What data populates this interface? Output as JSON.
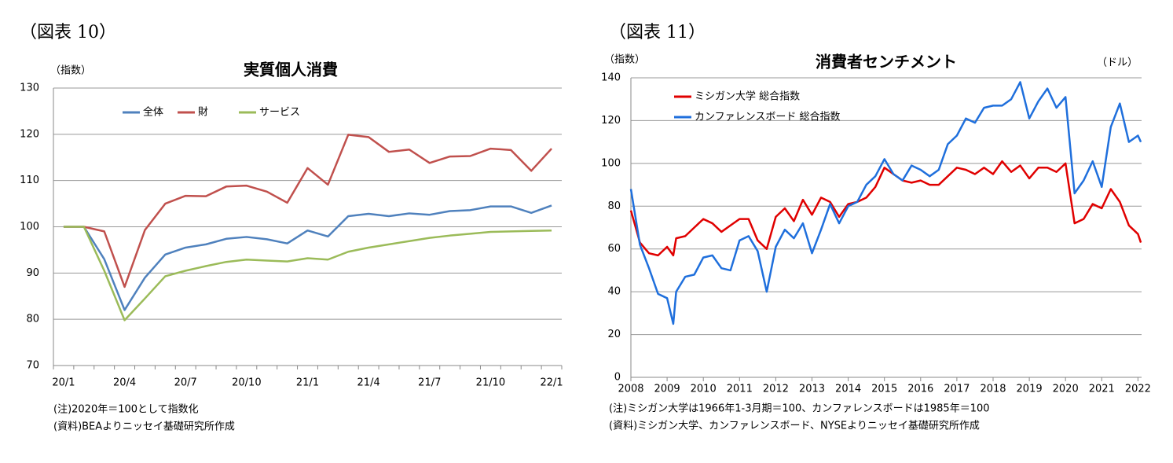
{
  "chart_data": [
    {
      "type": "line",
      "figure_label": "（図表 10）",
      "title": "実質個人消費",
      "ylabel": "（指数）",
      "categories": [
        "20/1",
        null,
        null,
        "20/4",
        null,
        null,
        "20/7",
        null,
        null,
        "20/10",
        null,
        null,
        "21/1",
        null,
        null,
        "21/4",
        null,
        null,
        "21/7",
        null,
        null,
        "21/10",
        null,
        null,
        "22/1"
      ],
      "series": [
        {
          "name": "全体",
          "color": "#4f81bd",
          "values": [
            100,
            100,
            93,
            82,
            89,
            94,
            95.5,
            96.2,
            97.4,
            97.8,
            97.3,
            96.4,
            99.2,
            97.9,
            102.3,
            102.8,
            102.3,
            102.9,
            102.6,
            103.4,
            103.6,
            104.4,
            104.4,
            103.0,
            104.6
          ]
        },
        {
          "name": "財",
          "color": "#c0504d",
          "values": [
            100,
            100,
            99,
            87,
            99.3,
            105,
            106.7,
            106.6,
            108.7,
            108.9,
            107.6,
            105.2,
            112.7,
            109.1,
            119.9,
            119.4,
            116.2,
            116.7,
            113.8,
            115.2,
            115.3,
            116.9,
            116.6,
            112.1,
            116.9
          ]
        },
        {
          "name": "サービス",
          "color": "#9bbb59",
          "values": [
            100,
            100,
            90.5,
            79.8,
            84.5,
            89.3,
            90.5,
            91.5,
            92.4,
            92.9,
            92.7,
            92.5,
            93.2,
            92.9,
            94.6,
            95.5,
            96.2,
            96.9,
            97.6,
            98.1,
            98.5,
            98.9,
            99.0,
            99.1,
            99.2
          ]
        }
      ],
      "ylim": [
        70,
        130
      ],
      "yticks": [
        70,
        80,
        90,
        100,
        110,
        120,
        130
      ],
      "grid": true,
      "legend": "top",
      "notes": [
        "(注)2020年＝100として指数化",
        "(資料)BEAよりニッセイ基礎研究所作成"
      ]
    },
    {
      "type": "line",
      "figure_label": "（図表 11）",
      "title": "消費者センチメント",
      "ylabel": "（指数）",
      "y_unit_right": "（ドル）",
      "x": [
        2008,
        2008.25,
        2008.5,
        2008.75,
        2009,
        2009.17,
        2009.25,
        2009.5,
        2009.75,
        2010,
        2010.25,
        2010.5,
        2010.75,
        2011,
        2011.25,
        2011.5,
        2011.75,
        2012,
        2012.25,
        2012.5,
        2012.75,
        2013,
        2013.25,
        2013.5,
        2013.75,
        2014,
        2014.25,
        2014.5,
        2014.75,
        2015,
        2015.25,
        2015.5,
        2015.75,
        2016,
        2016.25,
        2016.5,
        2016.75,
        2017,
        2017.25,
        2017.5,
        2017.75,
        2018,
        2018.25,
        2018.5,
        2018.75,
        2019,
        2019.25,
        2019.5,
        2019.75,
        2020,
        2020.25,
        2020.5,
        2020.75,
        2021,
        2021.25,
        2021.5,
        2021.75,
        2022,
        2022.08
      ],
      "series": [
        {
          "name": "ミシガン大学 総合指数",
          "color": "#e00000",
          "values": [
            78,
            63,
            58,
            57,
            61,
            57,
            65,
            66,
            70,
            74,
            72,
            68,
            71,
            74,
            74,
            64,
            60,
            75,
            79,
            73,
            83,
            76,
            84,
            82,
            75,
            81,
            82,
            84,
            89,
            98,
            95,
            92,
            91,
            92,
            90,
            90,
            94,
            98,
            97,
            95,
            98,
            95,
            101,
            96,
            99,
            93,
            98,
            98,
            96,
            100,
            72,
            74,
            81,
            79,
            88,
            82,
            71,
            67,
            63
          ]
        },
        {
          "name": "カンファレンスボード 総合指数",
          "color": "#1f6fdc",
          "values": [
            88,
            62,
            51,
            39,
            37,
            25,
            40,
            47,
            48,
            56,
            57,
            51,
            50,
            64,
            66,
            59,
            40,
            61,
            69,
            65,
            72,
            58,
            69,
            81,
            72,
            80,
            82,
            90,
            94,
            102,
            95,
            92,
            99,
            97,
            94,
            97,
            109,
            113,
            121,
            119,
            126,
            127,
            127,
            130,
            138,
            121,
            129,
            135,
            126,
            131,
            86,
            92,
            101,
            89,
            117,
            128,
            110,
            113,
            110
          ]
        }
      ],
      "xlim": [
        2008,
        2022.1
      ],
      "xticks": [
        2008,
        2009,
        2010,
        2011,
        2012,
        2013,
        2014,
        2015,
        2016,
        2017,
        2018,
        2019,
        2020,
        2021,
        2022
      ],
      "ylim": [
        0,
        140
      ],
      "yticks": [
        0,
        20,
        40,
        60,
        80,
        100,
        120,
        140
      ],
      "grid": true,
      "legend": "upper left",
      "notes": [
        "(注)ミシガン大学は1966年1-3月期＝100、カンファレンスボードは1985年＝100",
        "(資料)ミシガン大学、カンファレンスボード、NYSEよりニッセイ基礎研究所作成"
      ]
    }
  ]
}
